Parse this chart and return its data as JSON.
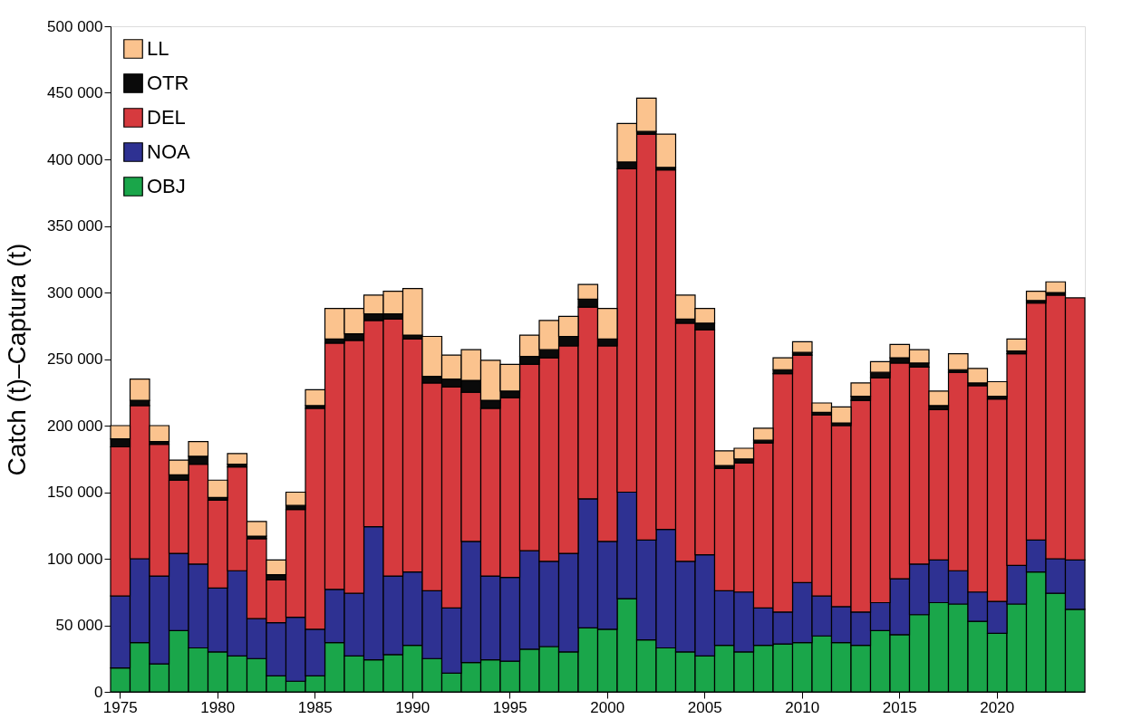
{
  "chart_data": {
    "type": "bar",
    "stacked": true,
    "ylabel": "Catch (t)–Captura (t)",
    "categories": [
      "1975",
      null,
      null,
      null,
      null,
      "1980",
      null,
      null,
      null,
      null,
      "1985",
      null,
      null,
      null,
      null,
      "1990",
      null,
      null,
      null,
      null,
      "1995",
      null,
      null,
      null,
      null,
      "2000",
      null,
      null,
      null,
      null,
      "2005",
      null,
      null,
      null,
      null,
      "2010",
      null,
      null,
      null,
      null,
      "2015",
      null,
      null,
      null,
      null,
      "2020",
      null,
      null,
      null,
      null
    ],
    "series": [
      {
        "name": "OBJ",
        "color": "#1aa64a",
        "values": [
          18000,
          37000,
          21000,
          46000,
          33000,
          30000,
          27000,
          25000,
          12000,
          8000,
          12000,
          37000,
          27000,
          24000,
          28000,
          35000,
          25000,
          14000,
          22000,
          24000,
          23000,
          32000,
          34000,
          30000,
          48000,
          47000,
          70000,
          39000,
          33000,
          30000,
          27000,
          35000,
          30000,
          35000,
          36000,
          37000,
          42000,
          37000,
          35000,
          46000,
          43000,
          58000,
          67000,
          66000,
          53000,
          44000,
          66000,
          90000,
          74000,
          62000
        ]
      },
      {
        "name": "NOA",
        "color": "#2e3192",
        "values": [
          54000,
          63000,
          66000,
          58000,
          63000,
          48000,
          64000,
          30000,
          40000,
          48000,
          35000,
          40000,
          47000,
          100000,
          59000,
          55000,
          51000,
          49000,
          91000,
          63000,
          63000,
          74000,
          64000,
          74000,
          97000,
          66000,
          80000,
          75000,
          89000,
          68000,
          76000,
          41000,
          45000,
          28000,
          24000,
          45000,
          30000,
          27000,
          25000,
          21000,
          42000,
          38000,
          32000,
          25000,
          22000,
          24000,
          29000,
          24000,
          26000,
          37000
        ]
      },
      {
        "name": "DEL",
        "color": "#d63a3e",
        "values": [
          112000,
          115000,
          99000,
          55000,
          75000,
          66000,
          78000,
          60000,
          32000,
          81000,
          166000,
          185000,
          190000,
          155000,
          193000,
          175000,
          156000,
          166000,
          112000,
          126000,
          135000,
          140000,
          153000,
          156000,
          144000,
          147000,
          243000,
          305000,
          270000,
          179000,
          169000,
          92000,
          97000,
          124000,
          179000,
          171000,
          136000,
          136000,
          159000,
          169000,
          162000,
          148000,
          113000,
          149000,
          155000,
          152000,
          159000,
          178000,
          198000,
          197000
        ]
      },
      {
        "name": "OTR",
        "color": "#0a0a0a",
        "values": [
          6000,
          4000,
          2000,
          4000,
          6000,
          2000,
          2000,
          2000,
          4000,
          3000,
          2000,
          3000,
          5000,
          5000,
          4000,
          3000,
          5000,
          6000,
          9000,
          6000,
          5000,
          6000,
          6000,
          7000,
          6000,
          5000,
          5000,
          2000,
          2000,
          3000,
          5000,
          2000,
          3000,
          2000,
          3000,
          2000,
          2000,
          2000,
          3000,
          4000,
          4000,
          3000,
          3000,
          2000,
          2000,
          2000,
          2000,
          2000,
          2000,
          null
        ]
      },
      {
        "name": "LL",
        "color": "#fbc38e",
        "values": [
          10000,
          16000,
          12000,
          11000,
          11000,
          13000,
          8000,
          11000,
          11000,
          10000,
          12000,
          23000,
          19000,
          14000,
          17000,
          35000,
          30000,
          18000,
          23000,
          30000,
          20000,
          16000,
          22000,
          15000,
          11000,
          23000,
          29000,
          25000,
          25000,
          18000,
          11000,
          11000,
          8000,
          9000,
          9000,
          8000,
          7000,
          12000,
          10000,
          8000,
          10000,
          10000,
          11000,
          12000,
          11000,
          11000,
          9000,
          7000,
          8000,
          null
        ]
      }
    ],
    "ylim": [
      0,
      500000
    ],
    "yticks": [
      0,
      {
        "value": 50000,
        "label": "50 000"
      },
      {
        "value": 100000,
        "label": "100 000"
      },
      {
        "value": 150000,
        "label": "150 000"
      },
      {
        "value": 200000,
        "label": "200 000"
      },
      {
        "value": 250000,
        "label": "250 000"
      },
      {
        "value": 300000,
        "label": "300 000"
      },
      {
        "value": 350000,
        "label": "350 000"
      },
      {
        "value": 400000,
        "label": "400 000"
      },
      {
        "value": 450000,
        "label": "450 000"
      },
      {
        "value": 500000,
        "label": "500 000"
      }
    ],
    "grid": false,
    "legend": "top left"
  }
}
